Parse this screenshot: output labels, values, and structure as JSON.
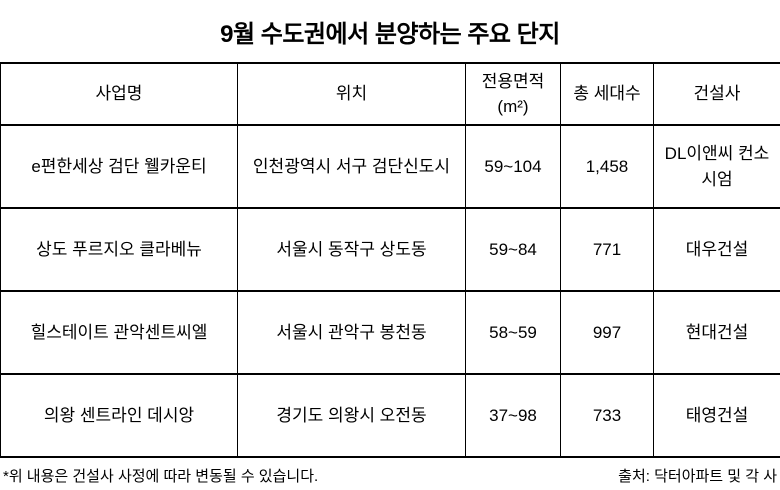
{
  "chart_data": {
    "type": "table",
    "title": "9월 수도권에서 분양하는 주요 단지",
    "columns": [
      "사업명",
      "위치",
      "전용면적\n(m²)",
      "총 세대수",
      "건설사"
    ],
    "rows": [
      [
        "e편한세상 검단 웰카운티",
        "인천광역시 서구 검단신도시",
        "59~104",
        "1,458",
        "DL이앤씨 컨소시엄"
      ],
      [
        "상도 푸르지오 클라베뉴",
        "서울시 동작구 상도동",
        "59~84",
        "771",
        "대우건설"
      ],
      [
        "힐스테이트 관악센트씨엘",
        "서울시 관악구 봉천동",
        "58~59",
        "997",
        "현대건설"
      ],
      [
        "의왕 센트라인 데시앙",
        "경기도 의왕시 오전동",
        "37~98",
        "733",
        "태영건설"
      ]
    ],
    "footnote": "*위 내용은 건설사 사정에 따라 변동될 수 있습니다.",
    "source": "출처: 닥터아파트 및 각 사",
    "legend_position": "none",
    "grid": "on"
  },
  "colors": {
    "text": "#000000",
    "border": "#000000",
    "background": "#ffffff"
  }
}
